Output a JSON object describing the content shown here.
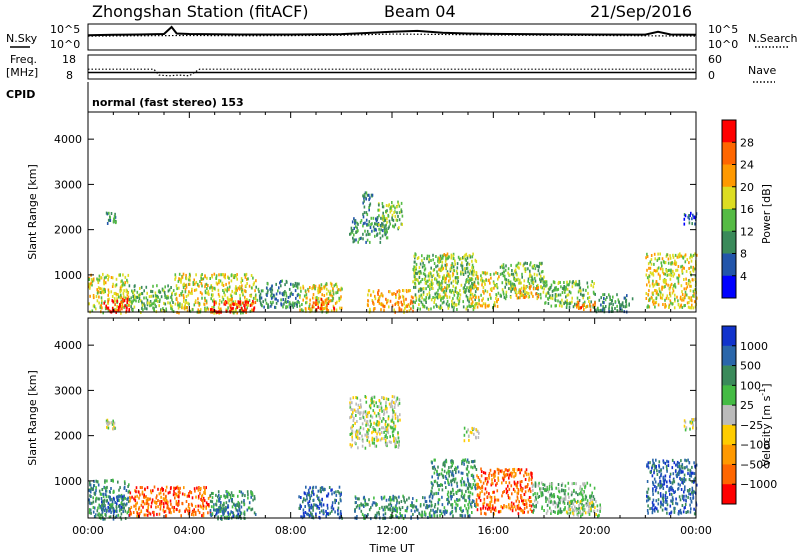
{
  "header": {
    "station": "Zhongshan Station (fitACF)",
    "beam": "Beam 04",
    "date": "21/Sep/2016",
    "cpid_label": "CPID",
    "cpid_value": "normal (fast stereo) 153"
  },
  "chart_data": [
    {
      "type": "line",
      "panel": "noise",
      "left_label": "N.Sky",
      "right_label": "N.Search",
      "yticks_left": [
        "10^5",
        "10^0"
      ],
      "yticks_right": [
        "10^5",
        "10^0"
      ],
      "scale": "log",
      "ylim": [
        1,
        100000
      ],
      "series": [
        {
          "name": "N.Sky",
          "style": "solid",
          "x": [
            0,
            1,
            2,
            3,
            3.3,
            3.5,
            4,
            6,
            8,
            10,
            11,
            12,
            13,
            14,
            15,
            16,
            18,
            20,
            22,
            22.5,
            23,
            24
          ],
          "values": [
            800,
            1000,
            1200,
            1500,
            60000,
            2000,
            1500,
            1200,
            1200,
            1400,
            2500,
            5000,
            8000,
            3000,
            2000,
            1600,
            1300,
            1200,
            1100,
            5000,
            1200,
            1000
          ]
        },
        {
          "name": "N.Search",
          "style": "dotted",
          "x": [
            0,
            2,
            4,
            6,
            8,
            10,
            12,
            14,
            16,
            18,
            20,
            22,
            24
          ],
          "values": [
            500,
            600,
            700,
            600,
            650,
            800,
            1500,
            1200,
            900,
            800,
            700,
            600,
            500
          ]
        }
      ]
    },
    {
      "type": "line",
      "panel": "frequency",
      "left_label_1": "Freq.",
      "left_label_2": "[MHz]",
      "right_label": "Nave",
      "yticks_left": [
        "18",
        "8"
      ],
      "yticks_right": [
        "60",
        "0"
      ],
      "ylim": [
        8,
        18
      ],
      "series": [
        {
          "name": "Freq.",
          "style": "solid",
          "x": [
            0,
            24
          ],
          "values": [
            10.5,
            10.5
          ]
        },
        {
          "name": "Nave",
          "style": "dotted",
          "x": [
            0,
            2.6,
            2.8,
            3.2,
            3.6,
            4.0,
            4.4,
            24
          ],
          "values": [
            24,
            24,
            8,
            6,
            8,
            6,
            24,
            24
          ]
        }
      ]
    },
    {
      "type": "heatmap",
      "panel": "power",
      "xlim": [
        0,
        24
      ],
      "ylim": [
        180,
        4600
      ],
      "ylabel": "Slant Range [km]",
      "yticks": [
        "1000",
        "2000",
        "3000",
        "4000"
      ],
      "colorbar": {
        "label": "Power [dB]",
        "ticks": [
          "4",
          "8",
          "12",
          "16",
          "20",
          "24",
          "28"
        ],
        "colors": [
          "#0000ff",
          "#2255aa",
          "#3a8a5a",
          "#55bb44",
          "#dddd22",
          "#ff9900",
          "#ff6600",
          "#ff0000"
        ]
      },
      "blobs": [
        {
          "t0": 0.0,
          "t1": 1.6,
          "r0": 180,
          "r1": 1050,
          "level": 4
        },
        {
          "t0": 0.6,
          "t1": 1.6,
          "r0": 200,
          "r1": 500,
          "level": 7
        },
        {
          "t0": 0.7,
          "t1": 1.1,
          "r0": 2150,
          "r1": 2400,
          "level": 2
        },
        {
          "t0": 1.6,
          "t1": 3.4,
          "r0": 200,
          "r1": 800,
          "level": 3
        },
        {
          "t0": 3.4,
          "t1": 6.6,
          "r0": 180,
          "r1": 1050,
          "level": 4
        },
        {
          "t0": 4.8,
          "t1": 6.6,
          "r0": 200,
          "r1": 450,
          "level": 7
        },
        {
          "t0": 6.6,
          "t1": 8.3,
          "r0": 300,
          "r1": 900,
          "level": 2
        },
        {
          "t0": 8.3,
          "t1": 10.0,
          "r0": 200,
          "r1": 850,
          "level": 4
        },
        {
          "t0": 8.8,
          "t1": 9.8,
          "r0": 250,
          "r1": 500,
          "level": 6
        },
        {
          "t0": 10.3,
          "t1": 11.8,
          "r0": 1750,
          "r1": 2300,
          "level": 2
        },
        {
          "t0": 11.4,
          "t1": 12.4,
          "r0": 2050,
          "r1": 2650,
          "level": 3
        },
        {
          "t0": 10.8,
          "t1": 11.2,
          "r0": 2300,
          "r1": 2850,
          "level": 2
        },
        {
          "t0": 11.0,
          "t1": 12.8,
          "r0": 200,
          "r1": 700,
          "level": 5
        },
        {
          "t0": 12.8,
          "t1": 15.3,
          "r0": 250,
          "r1": 1500,
          "level": 3
        },
        {
          "t0": 13.8,
          "t1": 14.4,
          "r0": 500,
          "r1": 1500,
          "level": 4
        },
        {
          "t0": 15.0,
          "t1": 16.2,
          "r0": 300,
          "r1": 1100,
          "level": 4
        },
        {
          "t0": 16.2,
          "t1": 18.0,
          "r0": 500,
          "r1": 1300,
          "level": 3
        },
        {
          "t0": 16.8,
          "t1": 17.8,
          "r0": 500,
          "r1": 800,
          "level": 5
        },
        {
          "t0": 18.0,
          "t1": 20.0,
          "r0": 300,
          "r1": 900,
          "level": 3
        },
        {
          "t0": 19.2,
          "t1": 20.0,
          "r0": 250,
          "r1": 450,
          "level": 6
        },
        {
          "t0": 20.0,
          "t1": 21.5,
          "r0": 200,
          "r1": 600,
          "level": 2
        },
        {
          "t0": 22.0,
          "t1": 24.0,
          "r0": 300,
          "r1": 1500,
          "level": 4
        },
        {
          "t0": 23.5,
          "t1": 24.0,
          "r0": 2150,
          "r1": 2400,
          "level": 1
        }
      ]
    },
    {
      "type": "heatmap",
      "panel": "velocity",
      "xlim": [
        0,
        24
      ],
      "ylim": [
        180,
        4600
      ],
      "ylabel": "Slant Range [km]",
      "yticks": [
        "1000",
        "2000",
        "3000",
        "4000"
      ],
      "xticks": [
        "00:00",
        "04:00",
        "08:00",
        "12:00",
        "16:00",
        "20:00",
        "00:00"
      ],
      "xlabel": "Time UT",
      "colorbar": {
        "label": "Velocity [m s",
        "label_sup": "-1",
        "label_end": "]",
        "ticks": [
          "1000",
          "500",
          "100",
          "25",
          "−25",
          "−100",
          "−500",
          "−1000"
        ],
        "colors": [
          "#1133cc",
          "#2a66aa",
          "#3a8a5a",
          "#44bb44",
          "#bbbbbb",
          "#ffcc00",
          "#ff9900",
          "#ff6600",
          "#ff0000"
        ]
      },
      "blobs": [
        {
          "t0": 0.0,
          "t1": 1.6,
          "r0": 180,
          "r1": 1050,
          "level": 2
        },
        {
          "t0": 0.5,
          "t1": 1.4,
          "r0": 300,
          "r1": 700,
          "level": 1
        },
        {
          "t0": 0.7,
          "t1": 1.1,
          "r0": 2150,
          "r1": 2400,
          "level": 4
        },
        {
          "t0": 1.6,
          "t1": 4.8,
          "r0": 250,
          "r1": 900,
          "level": 7
        },
        {
          "t0": 4.8,
          "t1": 6.6,
          "r0": 180,
          "r1": 800,
          "level": 2
        },
        {
          "t0": 5.0,
          "t1": 6.0,
          "r0": 200,
          "r1": 500,
          "level": 1
        },
        {
          "t0": 8.3,
          "t1": 10.0,
          "r0": 200,
          "r1": 900,
          "level": 1
        },
        {
          "t0": 10.3,
          "t1": 12.3,
          "r0": 1750,
          "r1": 2900,
          "level": 4
        },
        {
          "t0": 10.5,
          "t1": 13.5,
          "r0": 200,
          "r1": 700,
          "level": 2
        },
        {
          "t0": 13.5,
          "t1": 15.3,
          "r0": 250,
          "r1": 1500,
          "level": 2
        },
        {
          "t0": 14.8,
          "t1": 15.4,
          "r0": 1900,
          "r1": 2200,
          "level": 4
        },
        {
          "t0": 15.3,
          "t1": 17.5,
          "r0": 300,
          "r1": 1300,
          "level": 7
        },
        {
          "t0": 17.5,
          "t1": 20.0,
          "r0": 300,
          "r1": 1000,
          "level": 3
        },
        {
          "t0": 18.8,
          "t1": 20.2,
          "r0": 250,
          "r1": 600,
          "level": 4
        },
        {
          "t0": 22.0,
          "t1": 24.0,
          "r0": 300,
          "r1": 1500,
          "level": 1
        },
        {
          "t0": 23.5,
          "t1": 24.0,
          "r0": 2150,
          "r1": 2400,
          "level": 4
        }
      ]
    }
  ]
}
